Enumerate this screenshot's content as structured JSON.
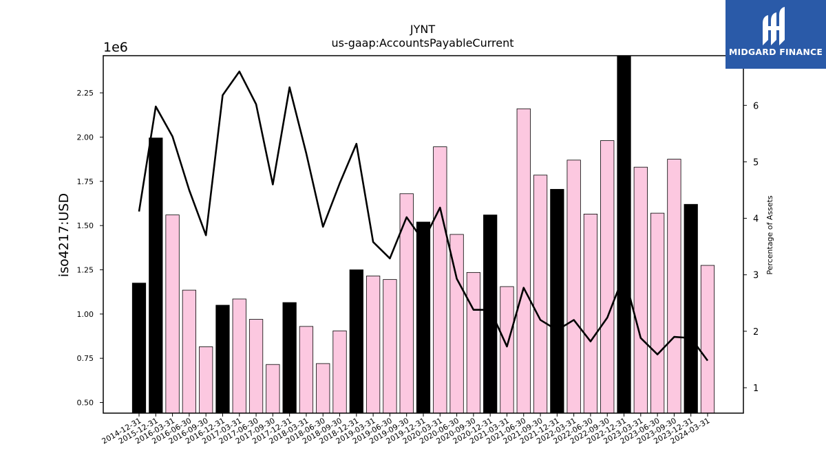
{
  "chart_data": {
    "type": "bar",
    "title": "JYNT",
    "subtitle": "us-gaap:AccountsPayableCurrent",
    "ylabel": "iso4217:USD",
    "y_offset_label": "1e6",
    "y2label": "Percentage of Assets",
    "ylim": [
      440000,
      2460000
    ],
    "y2lim": [
      0.55,
      6.88
    ],
    "yticks": [
      "0.50",
      "0.75",
      "1.00",
      "1.25",
      "1.50",
      "1.75",
      "2.00",
      "2.25"
    ],
    "y2ticks": [
      "1",
      "2",
      "3",
      "4",
      "5",
      "6"
    ],
    "categories": [
      "2014-12-31",
      "2015-12-31",
      "2016-03-31",
      "2016-06-30",
      "2016-09-30",
      "2016-12-31",
      "2017-03-31",
      "2017-06-30",
      "2017-09-30",
      "2017-12-31",
      "2018-03-31",
      "2018-06-30",
      "2018-09-30",
      "2018-12-31",
      "2019-03-31",
      "2019-06-30",
      "2019-09-30",
      "2019-12-31",
      "2020-03-31",
      "2020-06-30",
      "2020-09-30",
      "2020-12-31",
      "2021-03-31",
      "2021-06-30",
      "2021-09-30",
      "2021-12-31",
      "2022-03-31",
      "2022-06-30",
      "2022-09-30",
      "2022-12-31",
      "2023-03-31",
      "2023-06-30",
      "2023-09-30",
      "2023-12-31",
      "2024-03-31"
    ],
    "series": [
      {
        "type": "bar",
        "values": [
          1175000,
          1995000,
          1560000,
          1135000,
          815000,
          1050000,
          1085000,
          970000,
          715000,
          1065000,
          930000,
          720000,
          905000,
          1250000,
          1215000,
          1195000,
          1680000,
          1520000,
          1945000,
          1450000,
          1235000,
          1560000,
          1155000,
          2160000,
          1785000,
          1705000,
          1870000,
          1565000,
          1980000,
          2460000,
          1830000,
          1570000,
          1875000,
          1620000,
          1275000
        ],
        "year_end": [
          true,
          true,
          false,
          false,
          false,
          true,
          false,
          false,
          false,
          true,
          false,
          false,
          false,
          true,
          false,
          false,
          false,
          true,
          false,
          false,
          false,
          true,
          false,
          false,
          false,
          true,
          false,
          false,
          false,
          true,
          false,
          false,
          false,
          true,
          false
        ]
      },
      {
        "type": "line",
        "axis": "right",
        "values": [
          4.12,
          5.98,
          5.45,
          4.5,
          3.7,
          6.18,
          6.6,
          6.02,
          4.6,
          6.32,
          5.15,
          3.85,
          4.62,
          5.32,
          3.58,
          3.29,
          4.02,
          3.6,
          4.19,
          2.93,
          2.38,
          2.38,
          1.73,
          2.77,
          2.2,
          2.02,
          2.2,
          1.82,
          2.24,
          3.0,
          1.88,
          1.59,
          1.9,
          1.88,
          1.48
        ]
      }
    ],
    "colors": {
      "year_end_bar": "#000000",
      "quarter_bar": "#fcc8e0",
      "bar_edge": "#000000",
      "line": "#000000"
    },
    "grid": false,
    "legend": "none"
  },
  "logo": {
    "text": "MIDGARD FINANCE",
    "background": "#2a5aa8"
  }
}
